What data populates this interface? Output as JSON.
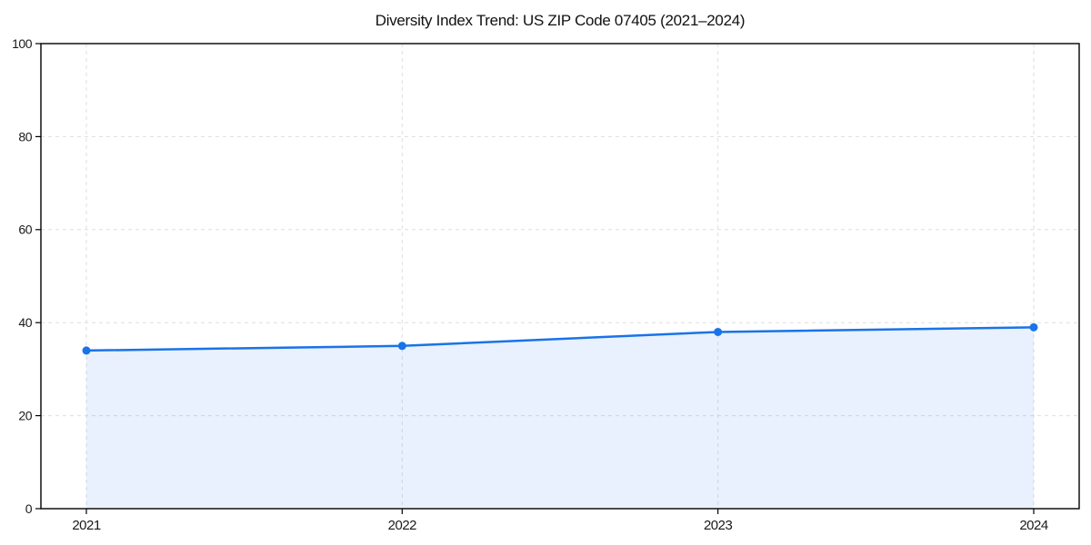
{
  "page": {
    "background": "#ffffff"
  },
  "chart_data": {
    "type": "area",
    "title": "Diversity Index Trend: US ZIP Code 07405 (2021–2024)",
    "categories": [
      "2021",
      "2022",
      "2023",
      "2024"
    ],
    "series": [
      {
        "name": "Diversity Index",
        "values": [
          34,
          35,
          38,
          39
        ]
      }
    ],
    "xlabel": "",
    "ylabel": "",
    "ylim": [
      0,
      100
    ],
    "yticks": [
      0,
      20,
      40,
      60,
      80,
      100
    ],
    "grid": "dashed-both-axes",
    "legend": "none",
    "colors": {
      "line": "#1a73e8",
      "marker": "#1a73e8",
      "area_fill": "rgba(26, 115, 232, 0.10)",
      "grid": "#dedede",
      "axis": "#000000",
      "tick_label": "#1a1a1a",
      "title": "#111111"
    }
  }
}
